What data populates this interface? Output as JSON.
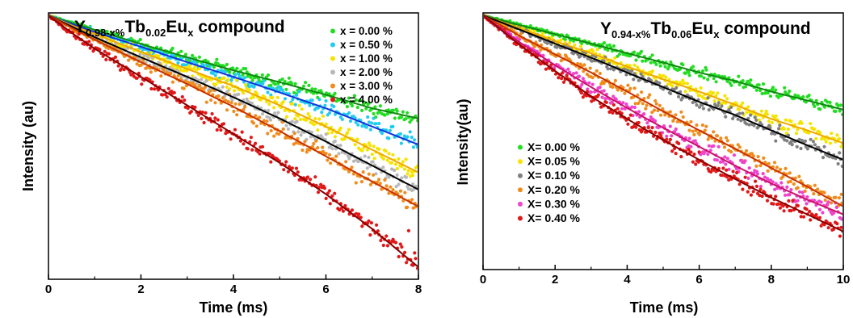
{
  "chart_data": [
    {
      "type": "scatter",
      "title_parts": [
        {
          "text": "Y",
          "style": "base"
        },
        {
          "text": "0.98-x%",
          "style": "sub"
        },
        {
          "text": "Tb",
          "style": "base"
        },
        {
          "text": "0.02",
          "style": "sub"
        },
        {
          "text": "Eu",
          "style": "base"
        },
        {
          "text": "x",
          "style": "sub"
        },
        {
          "text": " compound",
          "style": "base"
        }
      ],
      "xlabel": "Time (ms)",
      "ylabel": "Intensity (au)",
      "xlim": [
        0,
        8
      ],
      "xticks": [
        "0",
        "2",
        "4",
        "6",
        "8"
      ],
      "y_scale": "log",
      "y_tick_labels": "none",
      "legend_position": "top-right",
      "series": [
        {
          "name": "x = 0.00 %",
          "color": "#22dd22",
          "fit_color": "#118811",
          "x": [
            0,
            0.5,
            1,
            2,
            3,
            4,
            5,
            6,
            7,
            8
          ],
          "y": [
            1.0,
            0.87,
            0.76,
            0.58,
            0.45,
            0.35,
            0.28,
            0.22,
            0.17,
            0.14
          ]
        },
        {
          "name": "x = 0.50 %",
          "color": "#22ccee",
          "fit_color": "#1133dd",
          "x": [
            0,
            0.5,
            1,
            2,
            3,
            4,
            5,
            6,
            7,
            8
          ],
          "y": [
            1.0,
            0.85,
            0.73,
            0.55,
            0.41,
            0.31,
            0.23,
            0.17,
            0.12,
            0.085
          ]
        },
        {
          "name": "x = 1.00 %",
          "color": "#f5e400",
          "fit_color": "#f0a800",
          "x": [
            0,
            0.5,
            1,
            2,
            3,
            4,
            5,
            6,
            7,
            8
          ],
          "y": [
            1.0,
            0.83,
            0.7,
            0.5,
            0.36,
            0.26,
            0.18,
            0.12,
            0.077,
            0.05
          ]
        },
        {
          "name": "x = 2.00 %",
          "color": "#b8b8b8",
          "fit_color": "#000000",
          "x": [
            0,
            0.5,
            1,
            2,
            3,
            4,
            5,
            6,
            7,
            8
          ],
          "y": [
            1.0,
            0.81,
            0.66,
            0.45,
            0.31,
            0.21,
            0.14,
            0.09,
            0.057,
            0.036
          ]
        },
        {
          "name": "x = 3.00 %",
          "color": "#f08c1e",
          "fit_color": "#c83200",
          "x": [
            0,
            0.5,
            1,
            2,
            3,
            4,
            5,
            6,
            7,
            8
          ],
          "y": [
            1.0,
            0.79,
            0.63,
            0.41,
            0.27,
            0.175,
            0.11,
            0.068,
            0.042,
            0.026
          ]
        },
        {
          "name": "x = 4.00 %",
          "color": "#e01818",
          "fit_color": "#8b0000",
          "x": [
            0,
            0.5,
            1,
            2,
            3,
            4,
            5,
            6,
            7,
            8
          ],
          "y": [
            1.0,
            0.72,
            0.53,
            0.31,
            0.18,
            0.104,
            0.06,
            0.033,
            0.017,
            0.0082
          ]
        }
      ]
    },
    {
      "type": "scatter",
      "title_parts": [
        {
          "text": "Y",
          "style": "base"
        },
        {
          "text": "0.94-x%",
          "style": "sub"
        },
        {
          "text": "Tb",
          "style": "base"
        },
        {
          "text": "0.06",
          "style": "sub"
        },
        {
          "text": "Eu",
          "style": "base"
        },
        {
          "text": "x",
          "style": "sub"
        },
        {
          "text": " compound",
          "style": "base"
        }
      ],
      "xlabel": "Time (ms)",
      "ylabel": "Intensity(au)",
      "xlim": [
        0,
        10
      ],
      "xticks": [
        "0",
        "2",
        "4",
        "6",
        "8",
        "10"
      ],
      "y_scale": "log",
      "y_tick_labels": "none",
      "legend_position": "middle-left",
      "series": [
        {
          "name": "X= 0.00 %",
          "color": "#22dd22",
          "fit_color": "#118811",
          "x": [
            0,
            1,
            2,
            3,
            4,
            5,
            6,
            7,
            8,
            9,
            10
          ],
          "y": [
            1.0,
            0.82,
            0.68,
            0.56,
            0.46,
            0.38,
            0.31,
            0.26,
            0.21,
            0.175,
            0.145
          ]
        },
        {
          "name": "X= 0.05 %",
          "color": "#f5e400",
          "fit_color": "#f0a800",
          "x": [
            0,
            1,
            2,
            3,
            4,
            5,
            6,
            7,
            8,
            9,
            10
          ],
          "y": [
            1.0,
            0.77,
            0.59,
            0.46,
            0.35,
            0.27,
            0.21,
            0.16,
            0.12,
            0.095,
            0.073
          ]
        },
        {
          "name": "X= 0.10 %",
          "color": "#808080",
          "fit_color": "#000000",
          "x": [
            0,
            1,
            2,
            3,
            4,
            5,
            6,
            7,
            8,
            9,
            10
          ],
          "y": [
            1.0,
            0.75,
            0.56,
            0.42,
            0.31,
            0.23,
            0.17,
            0.13,
            0.095,
            0.07,
            0.052
          ]
        },
        {
          "name": "X= 0.20 %",
          "color": "#f08c1e",
          "fit_color": "#c83200",
          "x": [
            0,
            1,
            2,
            3,
            4,
            5,
            6,
            7,
            8,
            9,
            10
          ],
          "y": [
            1.0,
            0.66,
            0.45,
            0.31,
            0.21,
            0.14,
            0.095,
            0.065,
            0.044,
            0.03,
            0.02
          ]
        },
        {
          "name": "X= 0.30 %",
          "color": "#ee44cc",
          "fit_color": "#cc1166",
          "x": [
            0,
            1,
            2,
            3,
            4,
            5,
            6,
            7,
            8,
            9,
            10
          ],
          "y": [
            1.0,
            0.58,
            0.36,
            0.23,
            0.15,
            0.1,
            0.068,
            0.046,
            0.032,
            0.023,
            0.017
          ]
        },
        {
          "name": "X= 0.40 %",
          "color": "#e01818",
          "fit_color": "#8b0000",
          "x": [
            0,
            1,
            2,
            3,
            4,
            5,
            6,
            7,
            8,
            9,
            10
          ],
          "y": [
            1.0,
            0.55,
            0.32,
            0.19,
            0.12,
            0.078,
            0.052,
            0.035,
            0.024,
            0.017,
            0.012
          ]
        }
      ]
    }
  ]
}
